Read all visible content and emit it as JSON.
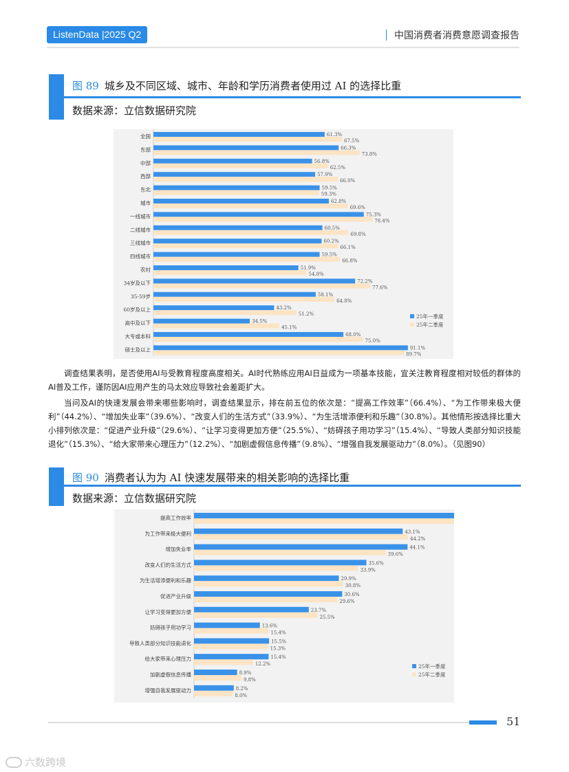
{
  "header": {
    "badge": "ListenData |2025 Q2",
    "report_title": "中国消费者消费意愿调查报告"
  },
  "figure89": {
    "number": "图 89",
    "title": "城乡及不同区域、城市、年龄和学历消费者使用过 AI 的选择比重",
    "source": "数据来源：立信数据研究院"
  },
  "figure90": {
    "number": "图 90",
    "title": "消费者认为为 AI 快速发展带来的相关影响的选择比重",
    "source": "数据来源：立信数据研究院"
  },
  "paragraphs": {
    "p1": "调查结果表明，是否使用AI与受教育程度高度相关。AI时代熟练应用AI日益成为一项基本技能，宜关注教育程度相对较低的群体的AI普及工作，谨防因AI应用产生的马太效应导致社会差距扩大。",
    "p2": "当问及AI的快速发展会带来哪些影响时，调查结果显示，排在前五位的依次是：“提高工作效率”（66.4%）、“为工作带来极大便利”（44.2%）、“增加失业率”（39.6%）、“改变人们的生活方式”（33.9%）、“为生活增添便利和乐趣”（30.8%）。其他情形按选择比重大小排列依次是：“促进产业升级”（29.6%）、“让学习变得更加方便”（25.5%）、“妨碍孩子用功学习”（15.4%）、“导致人类部分知识技能退化”（15.3%）、“给大家带来心理压力”（12.2%）、“加剧虚假信息传播”（9.8%）、“增强自我发展驱动力”（8.0%）。（见图90）"
  },
  "colors": {
    "accent": "#2a8ae6",
    "series1": "#3a92e8",
    "series2": "#fce4c4"
  },
  "chart_data": [
    {
      "type": "bar",
      "orientation": "horizontal",
      "categories": [
        "全国",
        "东部",
        "中部",
        "西部",
        "东北",
        "城市",
        "一线城市",
        "二线城市",
        "三线城市",
        "四线城市",
        "农村",
        "34岁及以下",
        "35-59岁",
        "60岁及以上",
        "高中及以下",
        "大专或本科",
        "硕士及以上"
      ],
      "series": [
        {
          "name": "25年一季度",
          "values": [
            61.3,
            66.3,
            56.8,
            57.9,
            59.5,
            62.8,
            75.3,
            60.5,
            60.2,
            59.5,
            51.9,
            72.2,
            58.1,
            43.2,
            34.5,
            68.0,
            91.1
          ]
        },
        {
          "name": "25年二季度",
          "values": [
            67.5,
            73.8,
            62.5,
            66.0,
            59.3,
            69.6,
            78.4,
            69.8,
            66.1,
            66.8,
            54.8,
            77.6,
            64.8,
            51.2,
            45.1,
            75.0,
            89.7
          ]
        }
      ],
      "labels1": [
        "61.3%",
        "66.3%",
        "56.8%",
        "57.9%",
        "59.5%",
        "62.8%",
        "75.3%",
        "60.5%",
        "60.2%",
        "59.5%",
        "51.9%",
        "72.2%",
        "58.1%",
        "43.2%",
        "34.5%",
        "68.0%",
        "91.1%"
      ],
      "labels2": [
        "67.5%",
        "73.8%",
        "62.5%",
        "66.0%",
        "59.3%",
        "69.6%",
        "78.4%",
        "69.8%",
        "66.1%",
        "66.8%",
        "54.8%",
        "77.6%",
        "64.8%",
        "51.2%",
        "45.1%",
        "75.0%",
        "89.7%"
      ],
      "xlim": [
        0,
        100
      ],
      "legend": "bottom-right"
    },
    {
      "type": "bar",
      "orientation": "horizontal",
      "categories": [
        "提高工作效率",
        "为工作带来极大便利",
        "增加失业率",
        "改变人们的生活方式",
        "为生活增添便利和乐趣",
        "促进产业升级",
        "让学习变得更加方便",
        "妨碍孩子用功学习",
        "导致人类部分知识技能退化",
        "给大家带来心理压力",
        "加剧虚假信息传播",
        "增强自我发展驱动力"
      ],
      "series": [
        {
          "name": "25年一季度",
          "values": [
            65.2,
            43.1,
            44.1,
            35.6,
            29.9,
            30.6,
            23.7,
            13.6,
            15.5,
            15.4,
            8.9,
            8.2
          ]
        },
        {
          "name": "25年二季度",
          "values": [
            66.4,
            44.2,
            39.6,
            33.9,
            30.8,
            29.6,
            25.5,
            15.4,
            15.3,
            12.2,
            9.8,
            8.0
          ]
        }
      ],
      "labels1": [
        "65.2%",
        "43.1%",
        "44.1%",
        "35.6%",
        "29.9%",
        "30.6%",
        "23.7%",
        "13.6%",
        "15.5%",
        "15.4%",
        "8.9%",
        "8.2%"
      ],
      "labels2": [
        "66.4%",
        "44.2%",
        "39.6%",
        "33.9%",
        "30.8%",
        "29.6%",
        "25.5%",
        "15.4%",
        "15.3%",
        "12.2%",
        "9.8%",
        "8.0%"
      ],
      "xlim": [
        0,
        80
      ],
      "legend": "bottom-right"
    }
  ],
  "footer": {
    "page_number": "51"
  },
  "watermark": {
    "text": "六数跨境"
  }
}
